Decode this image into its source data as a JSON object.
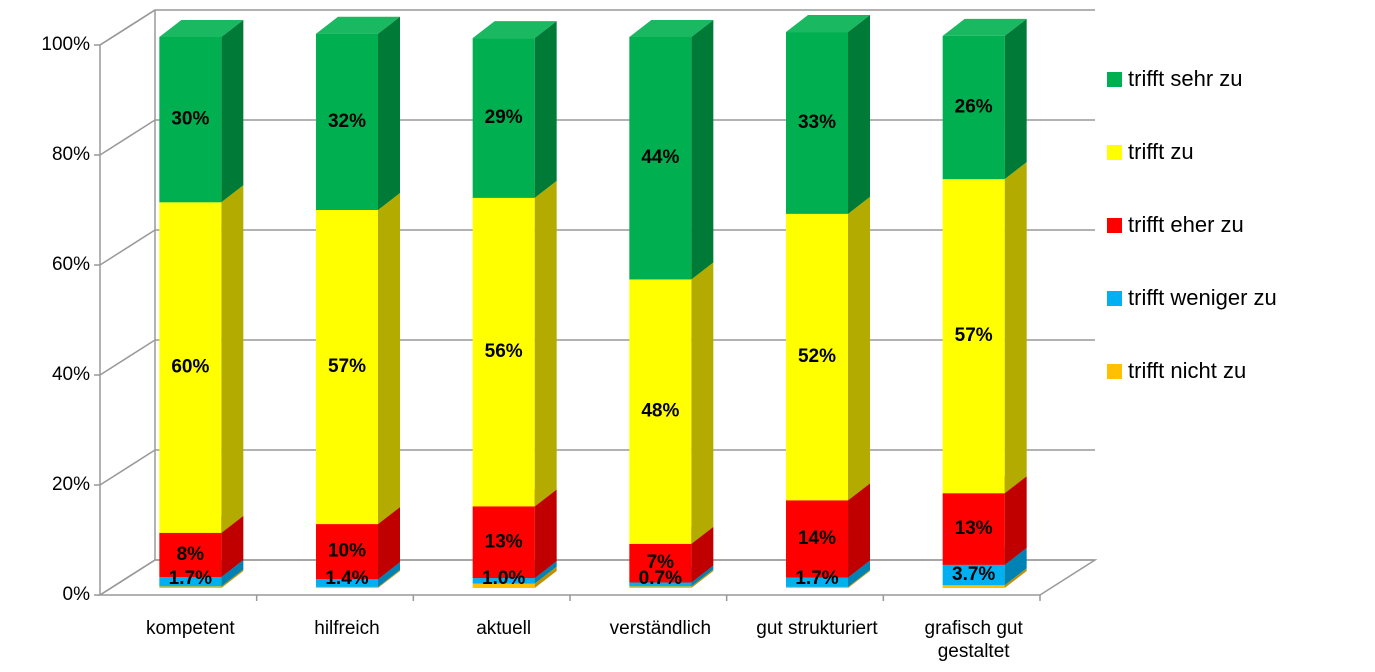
{
  "chart_data": {
    "type": "bar3d_stacked",
    "categories": [
      "kompetent",
      "hilfreich",
      "aktuell",
      "verständlich",
      "gut strukturiert",
      "grafisch gut gestaltet"
    ],
    "series": [
      {
        "name": "trifft nicht zu",
        "color": "#ffc000",
        "side": "#c09000",
        "values": [
          0.3,
          0.2,
          0.8,
          0.3,
          0.2,
          0.5
        ],
        "value_labels": [
          null,
          null,
          null,
          null,
          null,
          null
        ]
      },
      {
        "name": "trifft weniger zu",
        "color": "#00b0f0",
        "side": "#0082b4",
        "values": [
          1.7,
          1.4,
          1.0,
          0.7,
          1.7,
          3.7
        ],
        "value_labels": [
          "1.7%",
          "1.4%",
          "1.0%",
          "0.7%",
          "1.7%",
          "3.7%"
        ]
      },
      {
        "name": "trifft eher zu",
        "color": "#ff0000",
        "side": "#c00000",
        "values": [
          8,
          10,
          13,
          7,
          14,
          13
        ],
        "value_labels": [
          "8%",
          "10%",
          "13%",
          "7%",
          "14%",
          "13%"
        ]
      },
      {
        "name": "trifft zu",
        "color": "#ffff00",
        "side": "#b3ab00",
        "values": [
          60,
          57,
          56,
          48,
          52,
          57
        ],
        "value_labels": [
          "60%",
          "57%",
          "56%",
          "48%",
          "52%",
          "57%"
        ]
      },
      {
        "name": "trifft sehr zu",
        "color": "#00b050",
        "side": "#007a37",
        "values": [
          30,
          32,
          29,
          44,
          33,
          26
        ],
        "value_labels": [
          "30%",
          "32%",
          "29%",
          "44%",
          "33%",
          "26%"
        ]
      }
    ],
    "ylim": [
      0,
      100
    ],
    "yticks": [
      {
        "value": 0,
        "label": "0%"
      },
      {
        "value": 20,
        "label": "20%"
      },
      {
        "value": 40,
        "label": "40%"
      },
      {
        "value": 60,
        "label": "60%"
      },
      {
        "value": 80,
        "label": "80%"
      },
      {
        "value": 100,
        "label": "100%"
      }
    ],
    "grid": true,
    "legend": "right"
  }
}
